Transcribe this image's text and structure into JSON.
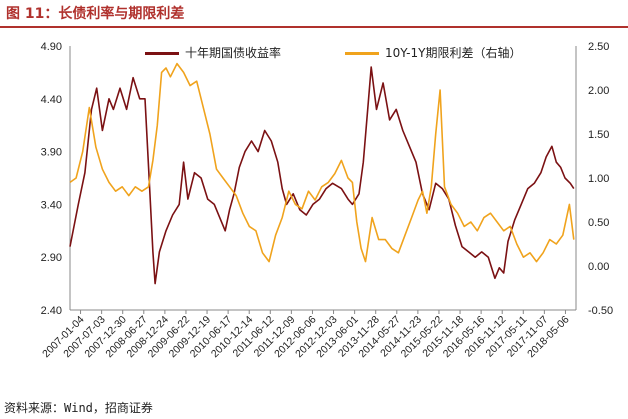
{
  "header": {
    "title": "图 11：长债利率与期限利差"
  },
  "footer": {
    "source": "资料来源：Wind，招商证券"
  },
  "colors": {
    "accent": "#b0312d",
    "series_yield": "#7b1113",
    "series_spread": "#f0a31d"
  },
  "chart_data": {
    "type": "line",
    "legend_position": "top",
    "grid": false,
    "x_tick_labels": [
      "2007-01-04",
      "2007-07-03",
      "2007-12-30",
      "2008-06-27",
      "2008-12-24",
      "2009-06-22",
      "2009-12-19",
      "2010-06-17",
      "2010-12-14",
      "2011-06-12",
      "2011-12-09",
      "2012-06-06",
      "2012-12-03",
      "2013-06-01",
      "2013-11-28",
      "2014-05-27",
      "2014-11-23",
      "2015-05-22",
      "2015-11-18",
      "2016-05-16",
      "2016-11-12",
      "2017-05-11",
      "2017-11-07",
      "2018-05-06"
    ],
    "y_left": {
      "ticks": [
        "4.90",
        "4.40",
        "3.90",
        "3.40",
        "2.90",
        "2.40"
      ],
      "range": [
        2.4,
        4.9
      ]
    },
    "y_right": {
      "ticks": [
        "2.50",
        "2.00",
        "1.50",
        "1.00",
        "0.50",
        "0.00",
        "-0.50"
      ],
      "range": [
        -0.5,
        2.5
      ]
    },
    "series": [
      {
        "name": "十年期国债收益率",
        "axis": "left",
        "x": [
          2007.01,
          2007.2,
          2007.35,
          2007.5,
          2007.62,
          2007.75,
          2007.9,
          2008.0,
          2008.15,
          2008.3,
          2008.45,
          2008.6,
          2008.72,
          2008.82,
          2008.9,
          2008.95,
          2009.05,
          2009.2,
          2009.35,
          2009.5,
          2009.6,
          2009.7,
          2009.85,
          2010.0,
          2010.15,
          2010.3,
          2010.45,
          2010.55,
          2010.65,
          2010.75,
          2010.87,
          2011.0,
          2011.15,
          2011.3,
          2011.45,
          2011.6,
          2011.75,
          2011.85,
          2011.95,
          2012.1,
          2012.25,
          2012.4,
          2012.55,
          2012.7,
          2012.85,
          2013.0,
          2013.2,
          2013.35,
          2013.45,
          2013.6,
          2013.7,
          2013.8,
          2013.88,
          2014.0,
          2014.15,
          2014.3,
          2014.45,
          2014.6,
          2014.75,
          2014.9,
          2015.05,
          2015.2,
          2015.35,
          2015.5,
          2015.65,
          2015.8,
          2015.95,
          2016.1,
          2016.25,
          2016.4,
          2016.55,
          2016.7,
          2016.8,
          2016.9,
          2017.0,
          2017.15,
          2017.3,
          2017.45,
          2017.6,
          2017.75,
          2017.87,
          2018.0,
          2018.1,
          2018.2,
          2018.3,
          2018.42,
          2018.5
        ],
        "values": [
          3.0,
          3.4,
          3.7,
          4.3,
          4.5,
          4.1,
          4.4,
          4.3,
          4.5,
          4.3,
          4.6,
          4.4,
          4.4,
          3.6,
          2.95,
          2.65,
          2.95,
          3.15,
          3.3,
          3.4,
          3.8,
          3.45,
          3.7,
          3.65,
          3.45,
          3.4,
          3.25,
          3.15,
          3.35,
          3.5,
          3.75,
          3.9,
          4.0,
          3.9,
          4.1,
          4.0,
          3.8,
          3.55,
          3.4,
          3.5,
          3.35,
          3.3,
          3.4,
          3.45,
          3.55,
          3.6,
          3.55,
          3.45,
          3.4,
          3.5,
          3.8,
          4.3,
          4.7,
          4.3,
          4.55,
          4.2,
          4.3,
          4.1,
          3.95,
          3.8,
          3.5,
          3.35,
          3.6,
          3.55,
          3.45,
          3.2,
          3.0,
          2.95,
          2.9,
          2.95,
          2.9,
          2.7,
          2.8,
          2.75,
          3.05,
          3.25,
          3.4,
          3.55,
          3.6,
          3.7,
          3.85,
          3.95,
          3.8,
          3.75,
          3.65,
          3.6,
          3.55
        ]
      },
      {
        "name": "10Y-1Y期限利差（右轴）",
        "axis": "right",
        "x": [
          2007.01,
          2007.15,
          2007.3,
          2007.45,
          2007.6,
          2007.75,
          2007.9,
          2008.05,
          2008.2,
          2008.35,
          2008.5,
          2008.65,
          2008.8,
          2008.9,
          2009.0,
          2009.1,
          2009.2,
          2009.3,
          2009.45,
          2009.6,
          2009.75,
          2009.9,
          2010.05,
          2010.2,
          2010.35,
          2010.5,
          2010.65,
          2010.8,
          2010.95,
          2011.1,
          2011.25,
          2011.4,
          2011.55,
          2011.7,
          2011.85,
          2012.0,
          2012.15,
          2012.3,
          2012.45,
          2012.6,
          2012.75,
          2012.9,
          2013.05,
          2013.2,
          2013.35,
          2013.45,
          2013.55,
          2013.65,
          2013.75,
          2013.9,
          2014.05,
          2014.2,
          2014.35,
          2014.5,
          2014.65,
          2014.8,
          2014.95,
          2015.05,
          2015.15,
          2015.25,
          2015.35,
          2015.45,
          2015.55,
          2015.7,
          2015.85,
          2016.0,
          2016.15,
          2016.3,
          2016.45,
          2016.6,
          2016.75,
          2016.9,
          2017.05,
          2017.2,
          2017.35,
          2017.5,
          2017.65,
          2017.8,
          2017.95,
          2018.1,
          2018.25,
          2018.4,
          2018.5
        ],
        "values": [
          0.95,
          1.0,
          1.3,
          1.8,
          1.35,
          1.1,
          0.95,
          0.85,
          0.9,
          0.8,
          0.9,
          0.85,
          0.9,
          1.2,
          1.6,
          2.2,
          2.25,
          2.15,
          2.3,
          2.2,
          2.05,
          2.1,
          1.8,
          1.5,
          1.1,
          1.0,
          0.9,
          0.8,
          0.6,
          0.45,
          0.4,
          0.15,
          0.05,
          0.35,
          0.55,
          0.85,
          0.7,
          0.65,
          0.85,
          0.75,
          0.9,
          0.95,
          1.05,
          1.2,
          1.0,
          0.95,
          0.5,
          0.2,
          0.05,
          0.55,
          0.3,
          0.3,
          0.2,
          0.15,
          0.35,
          0.55,
          0.75,
          0.85,
          0.6,
          0.9,
          1.5,
          2.0,
          0.9,
          0.7,
          0.6,
          0.45,
          0.5,
          0.4,
          0.55,
          0.6,
          0.5,
          0.4,
          0.45,
          0.25,
          0.1,
          0.15,
          0.05,
          0.15,
          0.3,
          0.25,
          0.35,
          0.7,
          0.3
        ]
      }
    ]
  }
}
